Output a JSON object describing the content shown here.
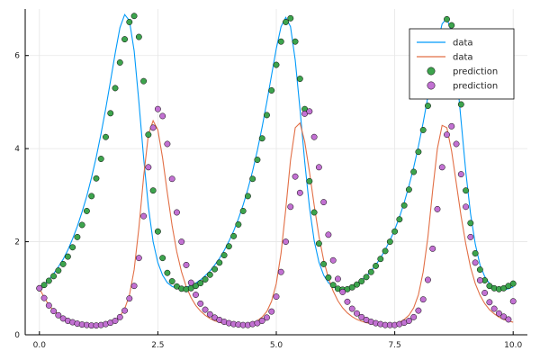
{
  "chart_data": {
    "type": "line+scatter",
    "title": "",
    "xlabel": "",
    "ylabel": "",
    "xlim": [
      -0.3,
      10.3
    ],
    "ylim": [
      0,
      7.0
    ],
    "xticks": [
      0,
      2.5,
      5,
      7.5,
      10
    ],
    "xtick_labels": [
      "0.0",
      "2.5",
      "5.0",
      "7.5",
      "10.0"
    ],
    "yticks": [
      0,
      2,
      4,
      6
    ],
    "ytick_labels": [
      "0",
      "2",
      "4",
      "6"
    ],
    "grid": true,
    "legend_position": "top-right",
    "series": [
      {
        "name": "data",
        "kind": "line",
        "color": "#009AFA",
        "x": [
          0,
          0.1,
          0.2,
          0.3,
          0.4,
          0.5,
          0.6,
          0.7,
          0.8,
          0.9,
          1.0,
          1.1,
          1.2,
          1.3,
          1.4,
          1.5,
          1.6,
          1.7,
          1.8,
          1.9,
          2.0,
          2.1,
          2.2,
          2.3,
          2.4,
          2.5,
          2.6,
          2.7,
          2.8,
          2.9,
          3.0,
          3.1,
          3.2,
          3.3,
          3.4,
          3.5,
          3.6,
          3.7,
          3.8,
          3.9,
          4.0,
          4.1,
          4.2,
          4.3,
          4.4,
          4.5,
          4.6,
          4.7,
          4.8,
          4.9,
          5.0,
          5.1,
          5.2,
          5.3,
          5.4,
          5.5,
          5.6,
          5.7,
          5.8,
          5.9,
          6.0,
          6.1,
          6.2,
          6.3,
          6.4,
          6.5,
          6.6,
          6.7,
          6.8,
          6.9,
          7.0,
          7.1,
          7.2,
          7.3,
          7.4,
          7.5,
          7.6,
          7.7,
          7.8,
          7.9,
          8.0,
          8.1,
          8.2,
          8.3,
          8.4,
          8.5,
          8.6,
          8.7,
          8.8,
          8.9,
          9.0,
          9.1,
          9.2,
          9.3,
          9.4,
          9.5,
          9.6,
          9.7,
          9.8,
          9.9,
          10.0
        ],
        "y": [
          1.0,
          1.08,
          1.18,
          1.31,
          1.46,
          1.62,
          1.82,
          2.06,
          2.33,
          2.64,
          2.98,
          3.38,
          3.82,
          4.32,
          4.86,
          5.45,
          6.05,
          6.6,
          6.88,
          6.75,
          6.1,
          5.0,
          3.8,
          2.75,
          2.0,
          1.55,
          1.28,
          1.12,
          1.04,
          1.0,
          1.0,
          1.02,
          1.06,
          1.11,
          1.18,
          1.27,
          1.37,
          1.5,
          1.64,
          1.81,
          2.01,
          2.23,
          2.49,
          2.79,
          3.13,
          3.52,
          3.96,
          4.46,
          5.0,
          5.58,
          6.15,
          6.62,
          6.82,
          6.62,
          5.9,
          4.85,
          3.72,
          2.74,
          2.02,
          1.56,
          1.28,
          1.12,
          1.03,
          0.98,
          0.98,
          1.0,
          1.04,
          1.1,
          1.17,
          1.26,
          1.37,
          1.5,
          1.65,
          1.83,
          2.03,
          2.26,
          2.53,
          2.84,
          3.2,
          3.6,
          4.05,
          4.56,
          5.12,
          5.7,
          6.25,
          6.68,
          6.8,
          6.5,
          5.7,
          4.6,
          3.5,
          2.6,
          1.95,
          1.5,
          1.25,
          1.1,
          1.02,
          0.98,
          0.97,
          0.99,
          1.03
        ]
      },
      {
        "name": "data",
        "kind": "line",
        "color": "#E26F46",
        "x": [
          0,
          0.1,
          0.2,
          0.3,
          0.4,
          0.5,
          0.6,
          0.7,
          0.8,
          0.9,
          1.0,
          1.1,
          1.2,
          1.3,
          1.4,
          1.5,
          1.6,
          1.7,
          1.8,
          1.9,
          2.0,
          2.1,
          2.2,
          2.3,
          2.4,
          2.5,
          2.6,
          2.7,
          2.8,
          2.9,
          3.0,
          3.1,
          3.2,
          3.3,
          3.4,
          3.5,
          3.6,
          3.7,
          3.8,
          3.9,
          4.0,
          4.1,
          4.2,
          4.3,
          4.4,
          4.5,
          4.6,
          4.7,
          4.8,
          4.9,
          5.0,
          5.1,
          5.2,
          5.3,
          5.4,
          5.5,
          5.6,
          5.7,
          5.8,
          5.9,
          6.0,
          6.1,
          6.2,
          6.3,
          6.4,
          6.5,
          6.6,
          6.7,
          6.8,
          6.9,
          7.0,
          7.1,
          7.2,
          7.3,
          7.4,
          7.5,
          7.6,
          7.7,
          7.8,
          7.9,
          8.0,
          8.1,
          8.2,
          8.3,
          8.4,
          8.5,
          8.6,
          8.7,
          8.8,
          8.9,
          9.0,
          9.1,
          9.2,
          9.3,
          9.4,
          9.5,
          9.6,
          9.7,
          9.8,
          9.9,
          10.0
        ],
        "y": [
          1.0,
          0.8,
          0.64,
          0.52,
          0.43,
          0.36,
          0.31,
          0.27,
          0.24,
          0.22,
          0.21,
          0.2,
          0.2,
          0.21,
          0.23,
          0.26,
          0.31,
          0.4,
          0.56,
          0.85,
          1.4,
          2.3,
          3.4,
          4.3,
          4.6,
          4.4,
          3.8,
          3.05,
          2.35,
          1.78,
          1.35,
          1.03,
          0.8,
          0.63,
          0.51,
          0.42,
          0.35,
          0.3,
          0.27,
          0.24,
          0.22,
          0.21,
          0.21,
          0.21,
          0.23,
          0.26,
          0.3,
          0.38,
          0.5,
          0.72,
          1.1,
          1.75,
          2.7,
          3.75,
          4.45,
          4.55,
          4.15,
          3.5,
          2.78,
          2.12,
          1.6,
          1.22,
          0.94,
          0.73,
          0.58,
          0.47,
          0.39,
          0.33,
          0.29,
          0.26,
          0.24,
          0.22,
          0.21,
          0.21,
          0.22,
          0.24,
          0.27,
          0.33,
          0.42,
          0.58,
          0.86,
          1.35,
          2.1,
          3.1,
          4.0,
          4.5,
          4.45,
          3.95,
          3.25,
          2.55,
          1.95,
          1.45,
          1.1,
          0.85,
          0.67,
          0.54,
          0.45,
          0.38,
          0.33,
          0.3,
          0.27
        ]
      },
      {
        "name": "prediction",
        "kind": "scatter",
        "color": "#3DA44D",
        "x": [
          0,
          0.1,
          0.2,
          0.3,
          0.4,
          0.5,
          0.6,
          0.7,
          0.8,
          0.9,
          1.0,
          1.1,
          1.2,
          1.3,
          1.4,
          1.5,
          1.6,
          1.7,
          1.8,
          1.9,
          2.0,
          2.1,
          2.2,
          2.3,
          2.4,
          2.5,
          2.6,
          2.7,
          2.8,
          2.9,
          3.0,
          3.1,
          3.2,
          3.3,
          3.4,
          3.5,
          3.6,
          3.7,
          3.8,
          3.9,
          4.0,
          4.1,
          4.2,
          4.3,
          4.4,
          4.5,
          4.6,
          4.7,
          4.8,
          4.9,
          5.0,
          5.1,
          5.2,
          5.3,
          5.4,
          5.5,
          5.6,
          5.7,
          5.8,
          5.9,
          6.0,
          6.1,
          6.2,
          6.3,
          6.4,
          6.5,
          6.6,
          6.7,
          6.8,
          6.9,
          7.0,
          7.1,
          7.2,
          7.3,
          7.4,
          7.5,
          7.6,
          7.7,
          7.8,
          7.9,
          8.0,
          8.1,
          8.2,
          8.3,
          8.4,
          8.5,
          8.6,
          8.7,
          8.8,
          8.9,
          9.0,
          9.1,
          9.2,
          9.3,
          9.4,
          9.5,
          9.6,
          9.7,
          9.8,
          9.9,
          10.0
        ],
        "y": [
          1.0,
          1.07,
          1.16,
          1.26,
          1.38,
          1.52,
          1.68,
          1.88,
          2.1,
          2.36,
          2.66,
          2.98,
          3.36,
          3.78,
          4.25,
          4.76,
          5.3,
          5.85,
          6.35,
          6.72,
          6.85,
          6.4,
          5.45,
          4.3,
          3.1,
          2.22,
          1.65,
          1.33,
          1.15,
          1.04,
          0.99,
          0.98,
          1.0,
          1.05,
          1.11,
          1.19,
          1.29,
          1.41,
          1.55,
          1.71,
          1.9,
          2.12,
          2.37,
          2.66,
          2.98,
          3.35,
          3.76,
          4.22,
          4.72,
          5.25,
          5.8,
          6.3,
          6.72,
          6.8,
          6.3,
          5.5,
          4.85,
          3.3,
          2.63,
          1.96,
          1.52,
          1.23,
          1.07,
          0.99,
          0.97,
          0.98,
          1.02,
          1.08,
          1.15,
          1.24,
          1.35,
          1.48,
          1.63,
          1.8,
          2.0,
          2.22,
          2.48,
          2.78,
          3.12,
          3.5,
          3.93,
          4.4,
          4.92,
          5.47,
          6.02,
          6.5,
          6.78,
          6.65,
          5.95,
          4.95,
          3.1,
          2.4,
          1.75,
          1.4,
          1.17,
          1.05,
          1.0,
          0.98,
          1.0,
          1.05,
          1.1
        ]
      },
      {
        "name": "prediction",
        "kind": "scatter",
        "color": "#C271D2",
        "x": [
          0,
          0.1,
          0.2,
          0.3,
          0.4,
          0.5,
          0.6,
          0.7,
          0.8,
          0.9,
          1.0,
          1.1,
          1.2,
          1.3,
          1.4,
          1.5,
          1.6,
          1.7,
          1.8,
          1.9,
          2.0,
          2.1,
          2.2,
          2.3,
          2.4,
          2.5,
          2.6,
          2.7,
          2.8,
          2.9,
          3.0,
          3.1,
          3.2,
          3.3,
          3.4,
          3.5,
          3.6,
          3.7,
          3.8,
          3.9,
          4.0,
          4.1,
          4.2,
          4.3,
          4.4,
          4.5,
          4.6,
          4.7,
          4.8,
          4.9,
          5.0,
          5.1,
          5.2,
          5.3,
          5.4,
          5.5,
          5.6,
          5.7,
          5.8,
          5.9,
          6.0,
          6.1,
          6.2,
          6.3,
          6.4,
          6.5,
          6.6,
          6.7,
          6.8,
          6.9,
          7.0,
          7.1,
          7.2,
          7.3,
          7.4,
          7.5,
          7.6,
          7.7,
          7.8,
          7.9,
          8.0,
          8.1,
          8.2,
          8.3,
          8.4,
          8.5,
          8.6,
          8.7,
          8.8,
          8.9,
          9.0,
          9.1,
          9.2,
          9.3,
          9.4,
          9.5,
          9.6,
          9.7,
          9.8,
          9.9,
          10.0
        ],
        "y": [
          1.0,
          0.79,
          0.63,
          0.51,
          0.42,
          0.35,
          0.3,
          0.27,
          0.24,
          0.22,
          0.21,
          0.2,
          0.2,
          0.21,
          0.23,
          0.26,
          0.3,
          0.38,
          0.52,
          0.78,
          1.05,
          1.65,
          2.55,
          3.6,
          4.45,
          4.85,
          4.7,
          4.1,
          3.35,
          2.63,
          2.0,
          1.5,
          1.12,
          0.86,
          0.67,
          0.54,
          0.44,
          0.37,
          0.32,
          0.28,
          0.25,
          0.23,
          0.22,
          0.21,
          0.21,
          0.23,
          0.25,
          0.3,
          0.37,
          0.5,
          0.82,
          1.35,
          2.0,
          2.75,
          3.4,
          3.05,
          4.75,
          4.8,
          4.25,
          3.6,
          2.85,
          2.15,
          1.6,
          1.2,
          0.92,
          0.71,
          0.56,
          0.46,
          0.38,
          0.32,
          0.28,
          0.25,
          0.23,
          0.21,
          0.21,
          0.21,
          0.23,
          0.26,
          0.3,
          0.38,
          0.52,
          0.76,
          1.18,
          1.85,
          2.7,
          3.6,
          4.3,
          4.48,
          4.1,
          3.45,
          2.75,
          2.1,
          1.55,
          1.17,
          0.9,
          0.7,
          0.56,
          0.46,
          0.39,
          0.33,
          0.72
        ]
      }
    ]
  }
}
